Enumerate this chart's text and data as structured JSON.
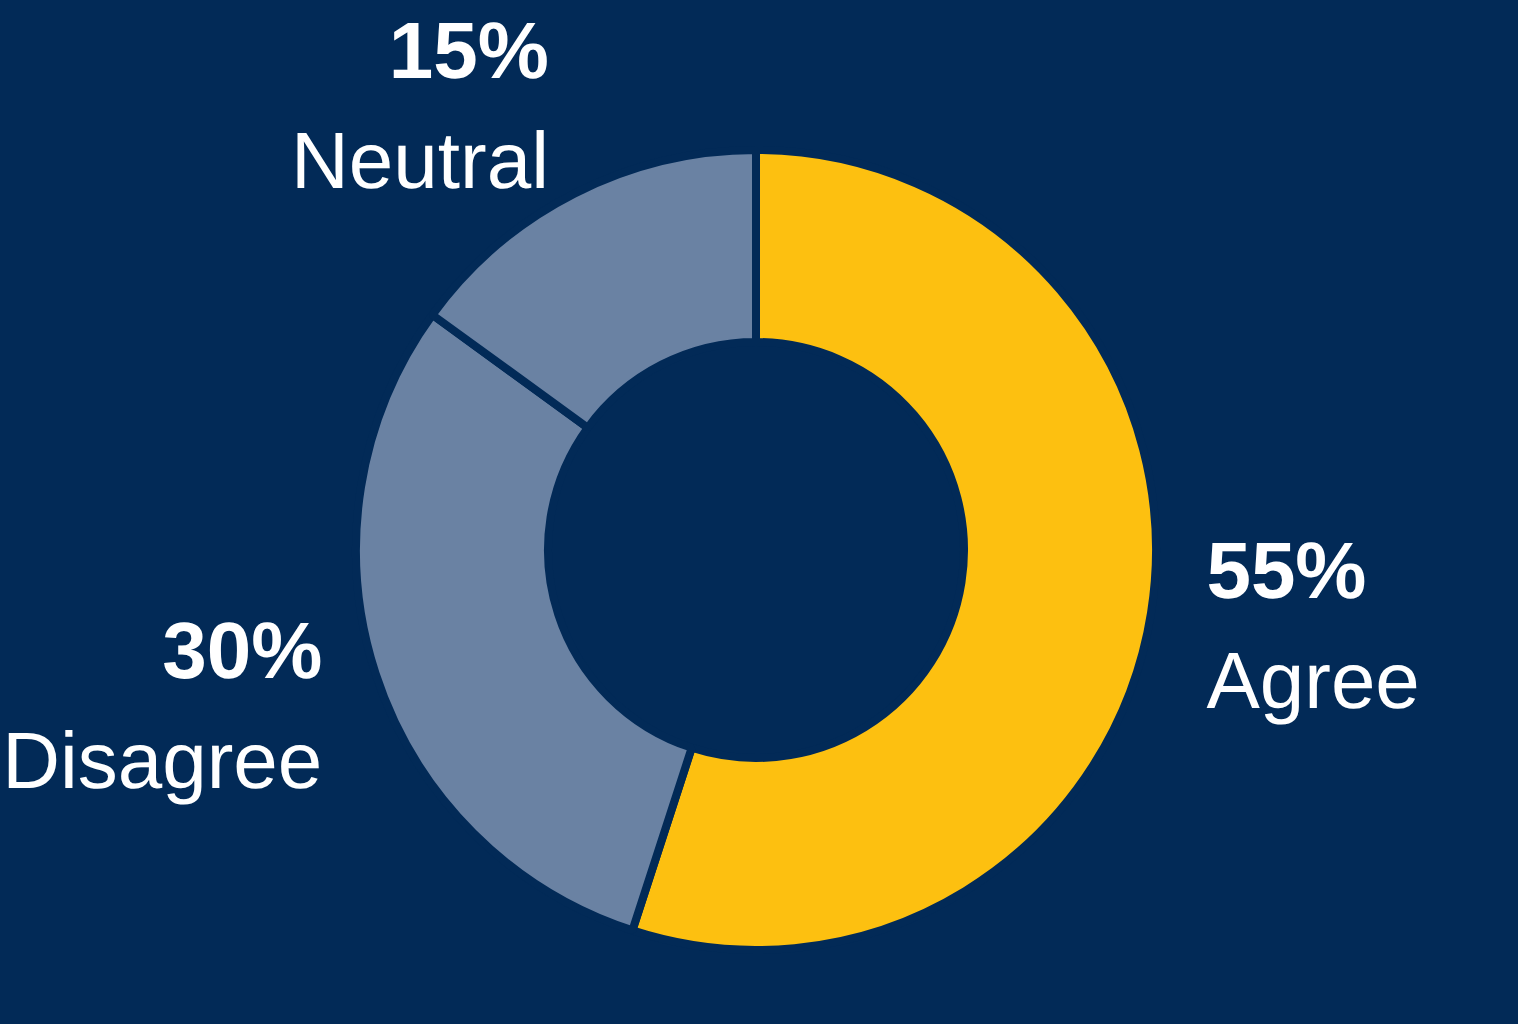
{
  "chart_data": {
    "type": "donut",
    "categories": [
      "Agree",
      "Disagree",
      "Neutral"
    ],
    "values": [
      55,
      30,
      15
    ],
    "value_labels": [
      "55%",
      "30%",
      "15%"
    ],
    "colors": [
      "#fdc010",
      "#6a82a3",
      "#6a82a3"
    ],
    "legend": false
  }
}
